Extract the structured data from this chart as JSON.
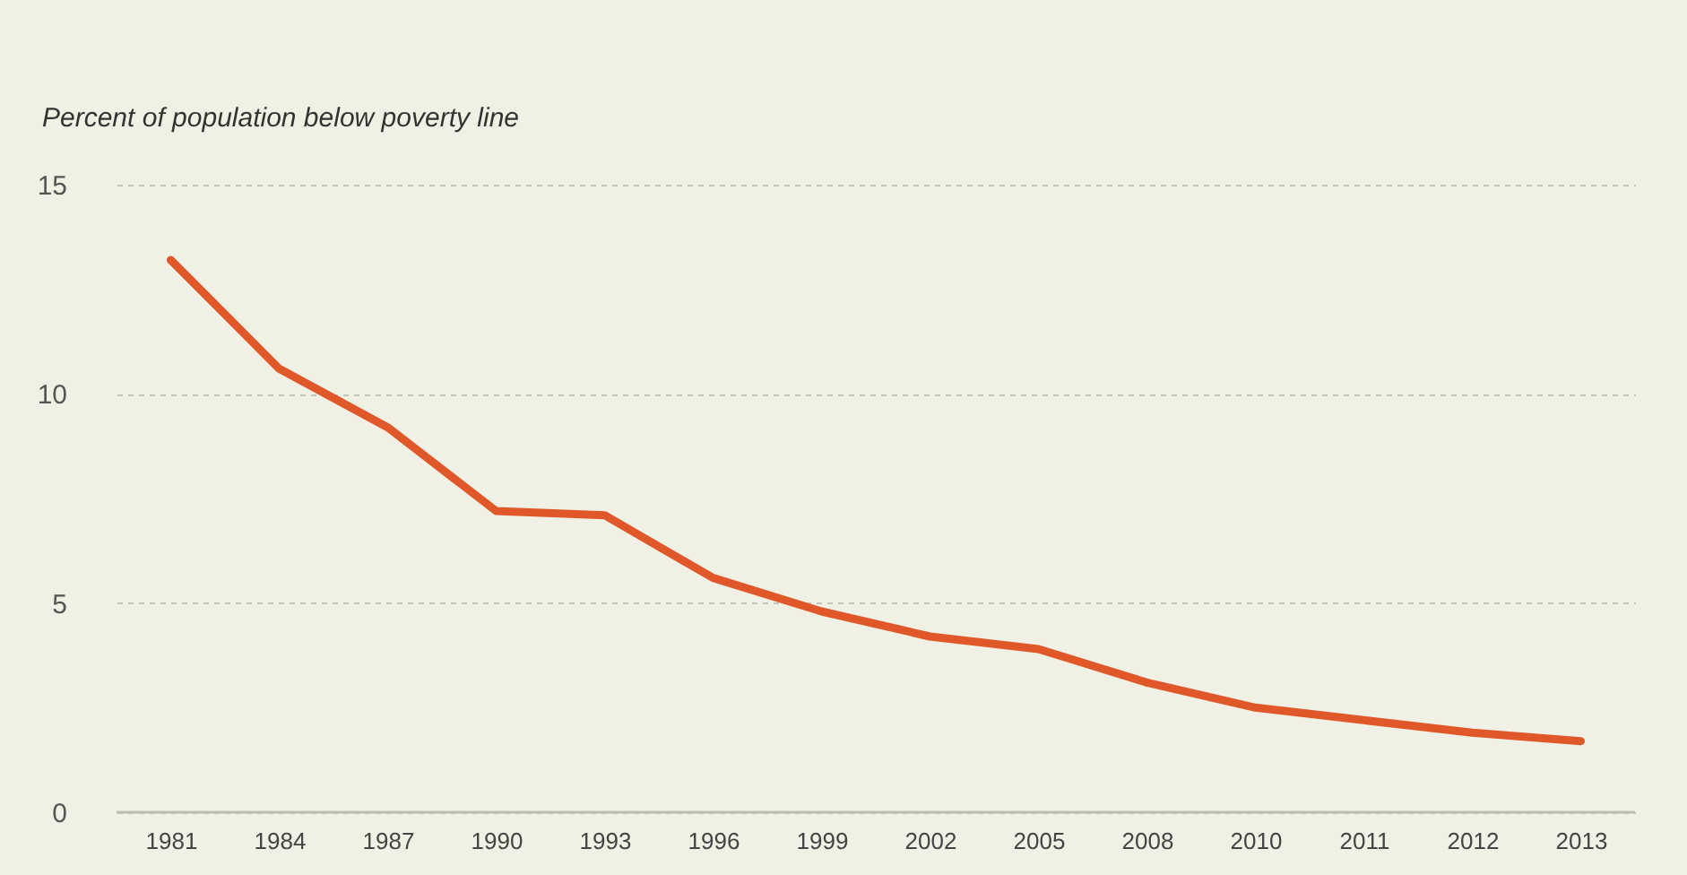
{
  "chart_data": {
    "type": "line",
    "ylabel": "Percent of population below poverty line",
    "categories": [
      "1981",
      "1984",
      "1987",
      "1990",
      "1993",
      "1996",
      "1999",
      "2002",
      "2005",
      "2008",
      "2010",
      "2011",
      "2012",
      "2013"
    ],
    "series": [
      {
        "color": "#e0582a",
        "values": [
          13.2,
          10.6,
          9.2,
          7.2,
          7.1,
          5.6,
          4.8,
          4.2,
          3.9,
          3.1,
          2.5,
          2.2,
          1.9,
          1.7
        ]
      }
    ],
    "ylim": [
      0,
      15
    ],
    "yticks": [
      0,
      5,
      10,
      15
    ],
    "grid": "y",
    "marker": "none",
    "line_style": "solid"
  }
}
